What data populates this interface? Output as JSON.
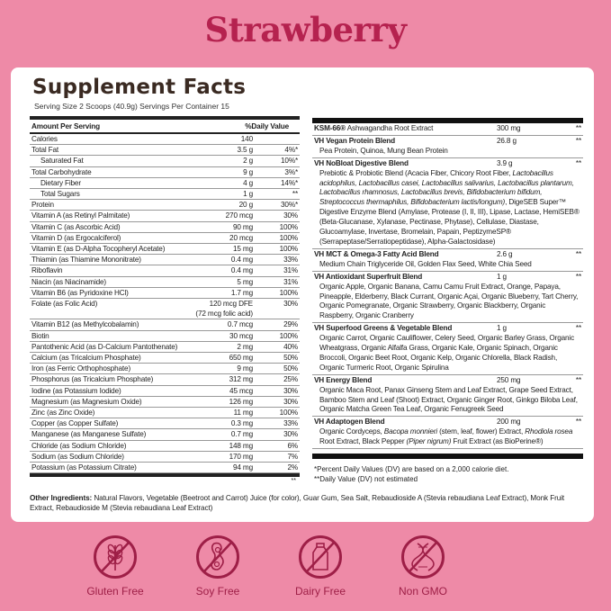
{
  "flavor": "Strawberry",
  "title": "Supplement Facts",
  "serving": "Serving Size 2 Scoops (40.9g) Servings Per Container 15",
  "left": {
    "header_amount": "Amount Per Serving",
    "header_dv": "%Daily Value",
    "rows": [
      {
        "name": "Calories",
        "amount": "140",
        "dv": ""
      },
      {
        "name": "Total Fat",
        "amount": "3.5 g",
        "dv": "4%*"
      },
      {
        "name": "Saturated Fat",
        "amount": "2 g",
        "dv": "10%*",
        "indent": true
      },
      {
        "name": "Total Carbohydrate",
        "amount": "9 g",
        "dv": "3%*"
      },
      {
        "name": "Dietary Fiber",
        "amount": "4 g",
        "dv": "14%*",
        "indent": true
      },
      {
        "name": "Total Sugars",
        "amount": "1 g",
        "dv": "**",
        "indent": true
      },
      {
        "name": "Protein",
        "amount": "20 g",
        "dv": "30%*"
      },
      {
        "name": "Vitamin A (as Retinyl Palmitate)",
        "amount": "270 mcg",
        "dv": "30%"
      },
      {
        "name": "Vitamin C (as Ascorbic Acid)",
        "amount": "90 mg",
        "dv": "100%"
      },
      {
        "name": "Vitamin D (as Ergocalciferol)",
        "amount": "20 mcg",
        "dv": "100%"
      },
      {
        "name": "Vitamin E (as D-Alpha Tocopheryl Acetate)",
        "amount": "15 mg",
        "dv": "100%"
      },
      {
        "name": "Thiamin (as Thiamine Mononitrate)",
        "amount": "0.4 mg",
        "dv": "33%"
      },
      {
        "name": "Riboflavin",
        "amount": "0.4 mg",
        "dv": "31%"
      },
      {
        "name": "Niacin (as Niacinamide)",
        "amount": "5 mg",
        "dv": "31%"
      },
      {
        "name": "Vitamin B6 (as Pyridoxine HCl)",
        "amount": "1.7 mg",
        "dv": "100%"
      },
      {
        "name": "Folate (as Folic Acid)",
        "amount": "120 mcg DFE",
        "amount2": "(72 mcg folic acid)",
        "dv": "30%"
      },
      {
        "name": "Vitamin B12 (as Methylcobalamin)",
        "amount": "0.7 mcg",
        "dv": "29%"
      },
      {
        "name": "Biotin",
        "amount": "30 mcg",
        "dv": "100%"
      },
      {
        "name": "Pantothenic Acid (as D-Calcium Pantothenate)",
        "amount": "2 mg",
        "dv": "40%"
      },
      {
        "name": "Calcium (as Tricalcium Phosphate)",
        "amount": "650 mg",
        "dv": "50%"
      },
      {
        "name": "Iron (as Ferric Orthophosphate)",
        "amount": "9 mg",
        "dv": "50%"
      },
      {
        "name": "Phosphorus (as Tricalcium Phosphate)",
        "amount": "312 mg",
        "dv": "25%"
      },
      {
        "name": "Iodine (as Potassium Iodide)",
        "amount": "45 mcg",
        "dv": "30%"
      },
      {
        "name": "Magnesium (as Magnesium Oxide)",
        "amount": "126 mg",
        "dv": "30%"
      },
      {
        "name": "Zinc (as Zinc Oxide)",
        "amount": "11 mg",
        "dv": "100%"
      },
      {
        "name": "Copper (as Copper Sulfate)",
        "amount": "0.3 mg",
        "dv": "33%"
      },
      {
        "name": "Manganese (as Manganese Sulfate)",
        "amount": "0.7 mg",
        "dv": "30%"
      },
      {
        "name": "Chloride (as Sodium Chloride)",
        "amount": "148 mg",
        "dv": "6%"
      },
      {
        "name": "Sodium (as Sodium Chloride)",
        "amount": "170 mg",
        "dv": "7%"
      },
      {
        "name": "Potassium (as Potassium Citrate)",
        "amount": "94 mg",
        "dv": "2%"
      }
    ],
    "note": "**"
  },
  "right": {
    "blocks": [
      {
        "name": "KSM-66®",
        "name_plain": " Ashwagandha Root Extract",
        "amount": "300 mg",
        "dv": "**",
        "text": []
      },
      {
        "name": "VH Vegan Protein Blend",
        "amount": "26.8 g",
        "dv": "**",
        "text": [
          {
            "t": "Pea Protein, Quinoa, Mung Bean Protein"
          }
        ]
      },
      {
        "name": "VH NoBloat Digestive Blend",
        "amount": "3.9 g",
        "dv": "**",
        "text": [
          {
            "t": "Prebiotic & Probiotic Blend (Acacia Fiber, Chicory Root Fiber, "
          },
          {
            "t": "Lactobacillus acidophilus, Lactobacillus casei, Lactobacillus salivarius, Lactobacillus plantarum, Lactobacillus rhamnosus, Lactobacillus brevis, Bifidobacterium bifidum, Streptococcus thermaphilus, Bifidobacterium lactis/longum)",
            "i": true
          },
          {
            "t": ", DigeSEB Super™ Digestive Enzyme Blend (Amylase, Protease (I, II, III), Lipase, Lactase, HemiSEB® (Beta-Glucanase, Xylanase, Pectinase, Phytase), Cellulase, Diastase, Glucoamylase, Invertase, Bromelain, Papain, PeptizymeSP® (Serrapeptase/Serratiopeptidase), Alpha-Galactosidase)"
          }
        ]
      },
      {
        "name": "VH MCT & Omega-3 Fatty Acid Blend",
        "amount": "2.6 g",
        "dv": "**",
        "text": [
          {
            "t": "Medium Chain Triglyceride Oil, Golden Flax Seed, White Chia Seed"
          }
        ]
      },
      {
        "name": "VH Antioxidant Superfruit Blend",
        "amount": "1 g",
        "dv": "**",
        "text": [
          {
            "t": "Organic Apple, Organic Banana, Camu Camu Fruit Extract, Orange, Papaya, Pineapple, Elderberry, Black Currant, Organic Açai, Organic Blueberry, Tart Cherry, Organic Pomegranate, Organic Strawberry, Organic Blackberry, Organic Raspberry, Organic Cranberry"
          }
        ]
      },
      {
        "name": "VH Superfood Greens & Vegetable Blend",
        "amount": "1 g",
        "dv": "**",
        "text": [
          {
            "t": "Organic Carrot, Organic Cauliflower, Celery Seed, Organic Barley Grass, Organic Wheatgrass, Organic Alfalfa Grass, Organic Kale, Organic Spinach, Organic Broccoli, Organic Beet Root, Organic Kelp, Organic Chlorella, Black Radish, Organic Turmeric Root, Organic Spirulina"
          }
        ]
      },
      {
        "name": "VH Energy Blend",
        "amount": "250 mg",
        "dv": "**",
        "text": [
          {
            "t": "Organic Maca Root, Panax Ginseng Stem and Leaf Extract, Grape Seed Extract, Bamboo Stem and Leaf (Shoot) Extract, Organic Ginger Root, Ginkgo Biloba Leaf, Organic Matcha Green Tea Leaf, Organic Fenugreek Seed"
          }
        ]
      },
      {
        "name": "VH Adaptogen Blend",
        "amount": "200 mg",
        "dv": "**",
        "text": [
          {
            "t": "Organic Cordyceps, "
          },
          {
            "t": "Bacopa monnieri",
            "i": true
          },
          {
            "t": " (stem, leaf, flower)  Extract, "
          },
          {
            "t": "Rhodiola rosea",
            "i": true
          },
          {
            "t": " Root Extract, Black Pepper "
          },
          {
            "t": "(Piper nigrum)",
            "i": true
          },
          {
            "t": " Fruit Extract (as BioPerine®)"
          }
        ]
      }
    ],
    "footnote1": "*Percent Daily Values (DV) are based on a 2,000 calorie diet.",
    "footnote2": "**Daily Value (DV) not estimated"
  },
  "other": {
    "label": "Other Ingredients:",
    "text": " Natural Flavors, Vegetable (Beetroot and Carrot) Juice (for color), Guar Gum, Sea Salt, Rebaudioside A (Stevia rebaudiana Leaf Extract), Monk Fruit Extract, Rebaudioside M (Stevia rebaudiana Leaf Extract)"
  },
  "badges": [
    {
      "label": "Gluten Free",
      "icon": "wheat-crossed-icon"
    },
    {
      "label": "Soy Free",
      "icon": "soybean-crossed-icon"
    },
    {
      "label": "Dairy Free",
      "icon": "milk-bottle-crossed-icon"
    },
    {
      "label": "Non GMO",
      "icon": "dna-crossed-icon"
    }
  ],
  "colors": {
    "background": "#ee8aa7",
    "accent": "#b5224f",
    "icon": "#9e1f47",
    "title": "#3a2a22"
  }
}
